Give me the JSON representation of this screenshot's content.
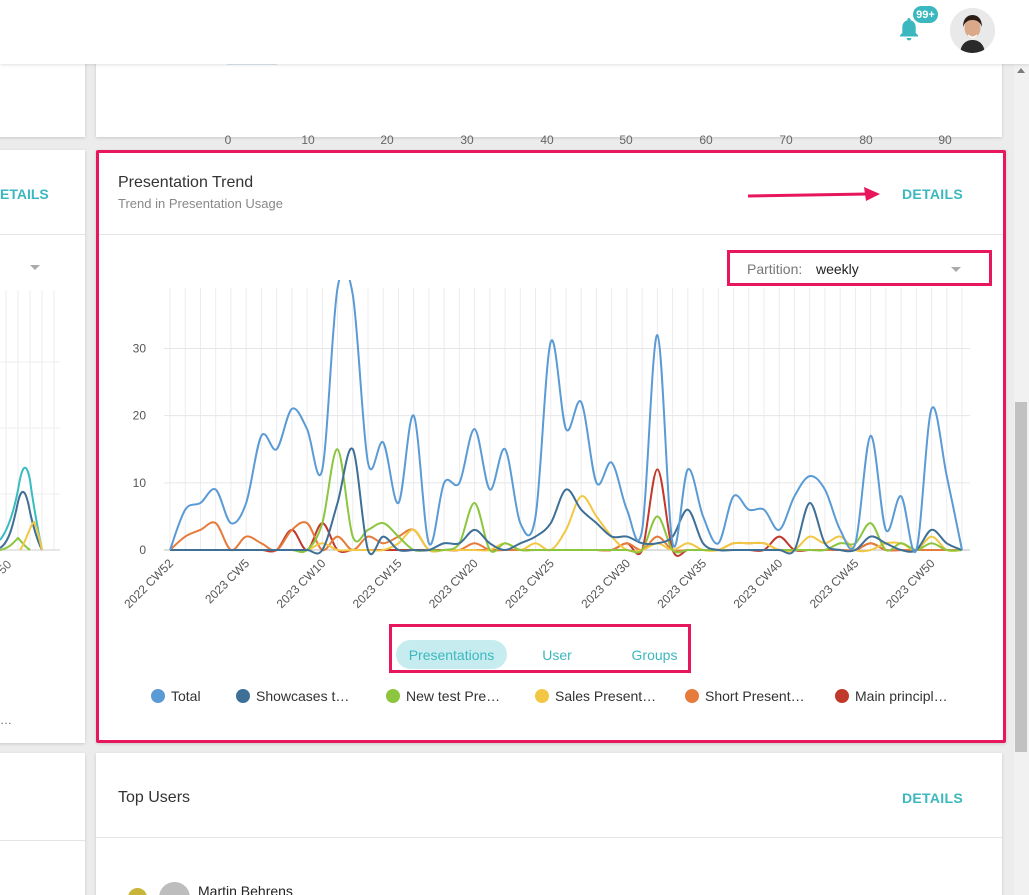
{
  "topbar": {
    "notification_badge": "99+",
    "bell_icon": "bell-icon",
    "avatar_icon": "user-avatar"
  },
  "top_chart": {
    "x_ticks": [
      "0",
      "10",
      "20",
      "30",
      "40",
      "50",
      "60",
      "70",
      "80",
      "90"
    ]
  },
  "left_column": {
    "details_label": "ETAILS",
    "fragment_tick": "50",
    "ellipsis": "…"
  },
  "presentation_trend": {
    "title": "Presentation Trend",
    "subtitle": "Trend in Presentation Usage",
    "details_label": "DETAILS",
    "partition_label": "Partition:",
    "partition_value": "weekly",
    "tabs": [
      {
        "label": "Presentations",
        "active": true
      },
      {
        "label": "User",
        "active": false
      },
      {
        "label": "Groups",
        "active": false
      }
    ],
    "colors": {
      "accent": "#3bb8bf",
      "highlight": "#e8175d"
    }
  },
  "chart_data": {
    "type": "line",
    "ylim": [
      0,
      39
    ],
    "y_ticks": [
      0,
      10,
      20,
      30
    ],
    "x_tick_labels": [
      "2022 CW52",
      "2023 CW5",
      "2023 CW10",
      "2023 CW15",
      "2023 CW20",
      "2023 CW25",
      "2023 CW30",
      "2023 CW35",
      "2023 CW40",
      "2023 CW45",
      "2023 CW50"
    ],
    "x": [
      "2022 CW52",
      "2023 CW1",
      "2023 CW2",
      "2023 CW3",
      "2023 CW4",
      "2023 CW5",
      "2023 CW6",
      "2023 CW7",
      "2023 CW8",
      "2023 CW9",
      "2023 CW10",
      "2023 CW11",
      "2023 CW12",
      "2023 CW13",
      "2023 CW14",
      "2023 CW15",
      "2023 CW16",
      "2023 CW17",
      "2023 CW18",
      "2023 CW19",
      "2023 CW20",
      "2023 CW21",
      "2023 CW22",
      "2023 CW23",
      "2023 CW24",
      "2023 CW25",
      "2023 CW26",
      "2023 CW27",
      "2023 CW28",
      "2023 CW29",
      "2023 CW30",
      "2023 CW31",
      "2023 CW32",
      "2023 CW33",
      "2023 CW34",
      "2023 CW35",
      "2023 CW36",
      "2023 CW37",
      "2023 CW38",
      "2023 CW39",
      "2023 CW40",
      "2023 CW41",
      "2023 CW42",
      "2023 CW43",
      "2023 CW44",
      "2023 CW45",
      "2023 CW46",
      "2023 CW47",
      "2023 CW48",
      "2023 CW49",
      "2023 CW50",
      "2023 CW51",
      "2023 CW52"
    ],
    "series": [
      {
        "name": "Total",
        "color": "#5b9bd5",
        "values": [
          0,
          6,
          7,
          9,
          4,
          7,
          17,
          15,
          21,
          18,
          12,
          39,
          38,
          13,
          16,
          7,
          20,
          1,
          10,
          10,
          18,
          9,
          15,
          4,
          5,
          31,
          18,
          22,
          10,
          13,
          6,
          3,
          32,
          1,
          12,
          5,
          1,
          8,
          6,
          6,
          3,
          8,
          11,
          9,
          3,
          1,
          17,
          3,
          8,
          0,
          21,
          11,
          0
        ]
      },
      {
        "name": "Showcases t…",
        "color": "#3e6f96",
        "values": [
          0,
          0,
          0,
          0,
          0,
          0,
          0,
          0,
          0,
          0,
          0,
          7,
          15,
          0,
          2,
          0,
          0,
          0,
          1,
          1,
          3,
          1,
          0,
          1,
          2,
          4,
          9,
          6,
          4,
          2,
          2,
          1,
          1,
          2,
          6,
          1,
          0,
          0,
          0,
          0,
          0,
          0,
          7,
          1,
          0,
          0,
          2,
          1,
          0,
          0,
          3,
          1,
          0
        ]
      },
      {
        "name": "New test Pre…",
        "color": "#8cc63e",
        "values": [
          0,
          0,
          0,
          0,
          0,
          0,
          0,
          0,
          0,
          0,
          4,
          15,
          2,
          3,
          4,
          2,
          0,
          0,
          0,
          1,
          7,
          0,
          1,
          0,
          0,
          0,
          0,
          0,
          0,
          0,
          0,
          0,
          5,
          0,
          0,
          0,
          0,
          0,
          0,
          0,
          0,
          0,
          0,
          0,
          1,
          1,
          4,
          0,
          1,
          0,
          1,
          0,
          0
        ]
      },
      {
        "name": "Sales Present…",
        "color": "#f2c744",
        "values": [
          0,
          0,
          0,
          0,
          0,
          0,
          0,
          0,
          0,
          0,
          1,
          0,
          0,
          0,
          0,
          1,
          3,
          0,
          0,
          0,
          0,
          0,
          1,
          0,
          1,
          0,
          3,
          8,
          5,
          2,
          0,
          0,
          1,
          0,
          1,
          0,
          0,
          1,
          1,
          1,
          0,
          0,
          2,
          1,
          2,
          0,
          0,
          1,
          1,
          0,
          2,
          0,
          0
        ]
      },
      {
        "name": "Short Present…",
        "color": "#e57c3c",
        "values": [
          0,
          2,
          3,
          4,
          0,
          2,
          1,
          0,
          3,
          4,
          0,
          2,
          0,
          2,
          1,
          2,
          3,
          0,
          0,
          0,
          1,
          0,
          0,
          0,
          0,
          0,
          0,
          0,
          0,
          0,
          1,
          0,
          2,
          0,
          0,
          0,
          0,
          1,
          1,
          1,
          0,
          0,
          0,
          0,
          0,
          0,
          1,
          0,
          0,
          0,
          0,
          0,
          0
        ]
      },
      {
        "name": "Main principl…",
        "color": "#c0392b",
        "values": [
          0,
          0,
          0,
          0,
          0,
          0,
          0,
          0,
          3,
          0,
          4,
          0,
          0,
          0,
          0,
          0,
          0,
          0,
          0,
          0,
          0,
          0,
          0,
          0,
          0,
          0,
          0,
          0,
          0,
          0,
          1,
          0,
          12,
          0,
          0,
          0,
          0,
          0,
          0,
          0,
          2,
          0,
          0,
          0,
          0,
          0,
          1,
          0,
          0,
          0,
          0,
          0,
          0
        ]
      }
    ]
  },
  "top_users": {
    "title": "Top Users",
    "details_label": "DETAILS",
    "first_user": "Martin Behrens"
  }
}
